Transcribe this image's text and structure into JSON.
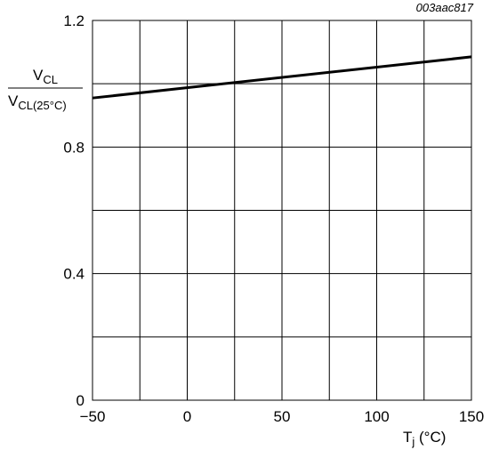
{
  "figure_id": "003aac817",
  "chart_data": {
    "type": "line",
    "x_ticks": [
      "−50",
      "0",
      "50",
      "100",
      "150"
    ],
    "y_ticks": [
      "0",
      "0.4",
      "0.8",
      "1.2"
    ],
    "xlim": [
      -50,
      150
    ],
    "ylim": [
      0,
      1.2
    ],
    "x_grid_step": 25,
    "y_grid_step": 0.2,
    "grid": true,
    "xlabel": {
      "main": "T",
      "sub": "j",
      "unit": " (°C)"
    },
    "ylabel": {
      "numerator_main": "V",
      "numerator_sub": "CL",
      "denominator_main": "V",
      "denominator_sub": "CL(25°C)"
    },
    "series": [
      {
        "x": [
          -50,
          150
        ],
        "y": [
          0.955,
          1.085
        ]
      }
    ]
  }
}
